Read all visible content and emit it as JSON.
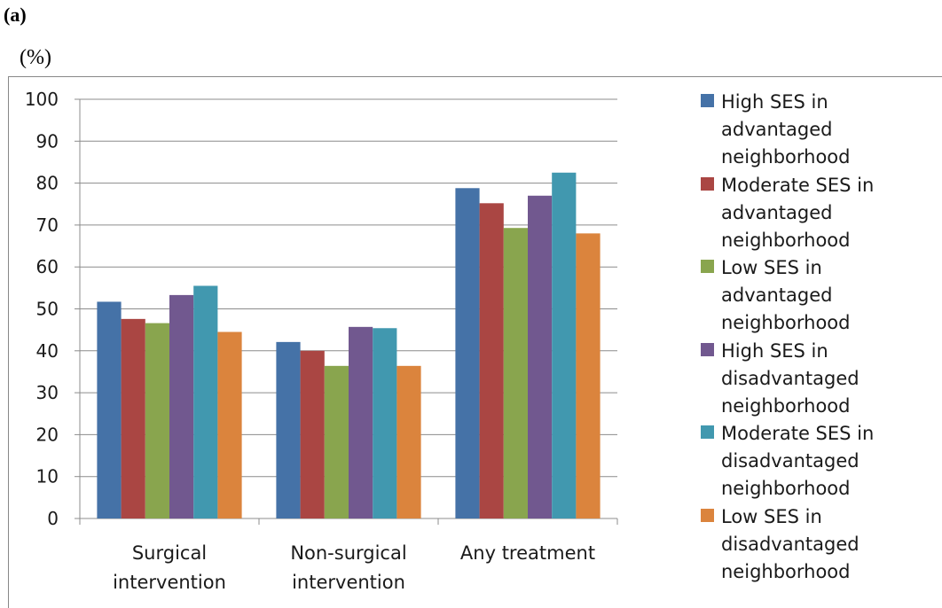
{
  "panel_label": "(a)",
  "unit_label": "(%)",
  "chart_data": {
    "type": "bar",
    "categories": [
      "Surgical intervention",
      "Non-surgical intervention",
      "Any treatment"
    ],
    "category_lines": [
      [
        "Surgical",
        "intervention"
      ],
      [
        "Non-surgical",
        "intervention"
      ],
      [
        "Any treatment"
      ]
    ],
    "ylim": [
      0,
      100
    ],
    "yticks": [
      0,
      10,
      20,
      30,
      40,
      50,
      60,
      70,
      80,
      90,
      100
    ],
    "grid": true,
    "legend_position": "right",
    "series": [
      {
        "name": "High SES in advantaged neighborhood",
        "color": "#4572A7",
        "values": [
          51.7,
          42.1,
          78.8
        ]
      },
      {
        "name": "Moderate SES in advantaged neighborhood",
        "color": "#AA4643",
        "values": [
          47.6,
          40.0,
          75.2
        ]
      },
      {
        "name": "Low SES in advantaged neighborhood",
        "color": "#89A54E",
        "values": [
          46.6,
          36.4,
          69.3
        ]
      },
      {
        "name": "High SES in disadvantaged neighborhood",
        "color": "#71588F",
        "values": [
          53.3,
          45.7,
          77.0
        ]
      },
      {
        "name": "Moderate SES in disadvantaged neighborhood",
        "color": "#4198AF",
        "values": [
          55.5,
          45.4,
          82.5
        ]
      },
      {
        "name": "Low SES in disadvantaged neighborhood",
        "color": "#DB843D",
        "values": [
          44.5,
          36.4,
          68.0
        ]
      }
    ]
  }
}
